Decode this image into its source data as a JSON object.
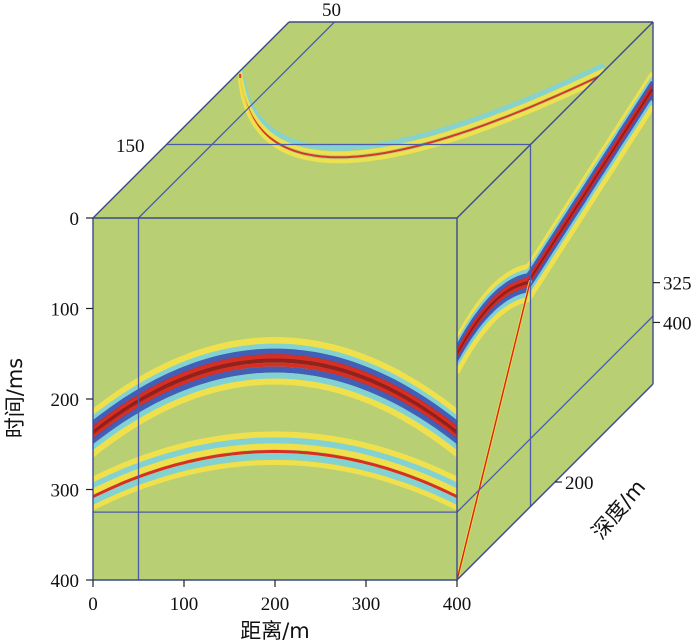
{
  "colors": {
    "background": "#b9cf74",
    "edge": "#3a4a8a",
    "slice_line": "#4a5ca8",
    "event_yellow": "#f2e24a",
    "event_cyan": "#7fd2d8",
    "event_blue": "#3b58b8",
    "event_red": "#d8271f",
    "event_darkred": "#8c1a1a"
  },
  "chart_data": {
    "type": "3d-seismic-cube",
    "x_axis": {
      "label": "距离/m",
      "ticks": [
        0,
        100,
        200,
        300,
        400
      ],
      "range": [
        0,
        400
      ]
    },
    "t_axis": {
      "label": "时间/ms",
      "ticks": [
        0,
        100,
        200,
        300,
        400
      ],
      "range": [
        0,
        400
      ]
    },
    "depth_axis": {
      "label": "深度/m",
      "ticks": [
        200,
        325,
        400
      ],
      "range": [
        0,
        400
      ]
    },
    "slice_annotations": [
      "50",
      "150"
    ],
    "slices": {
      "inline_distance": 50,
      "crossline_depth": 150,
      "time_slice": 325
    },
    "events_front_face": [
      {
        "name": "",
        "apex_x": 200,
        "apex_t": 152,
        "t_at_x0": 232,
        "t_at_x400": 232,
        "polarity": "strong"
      },
      {
        "name": "",
        "apex_x": 200,
        "apex_t": 248,
        "t_at_x0": 298,
        "t_at_x400": 298,
        "polarity": "weak"
      }
    ]
  }
}
